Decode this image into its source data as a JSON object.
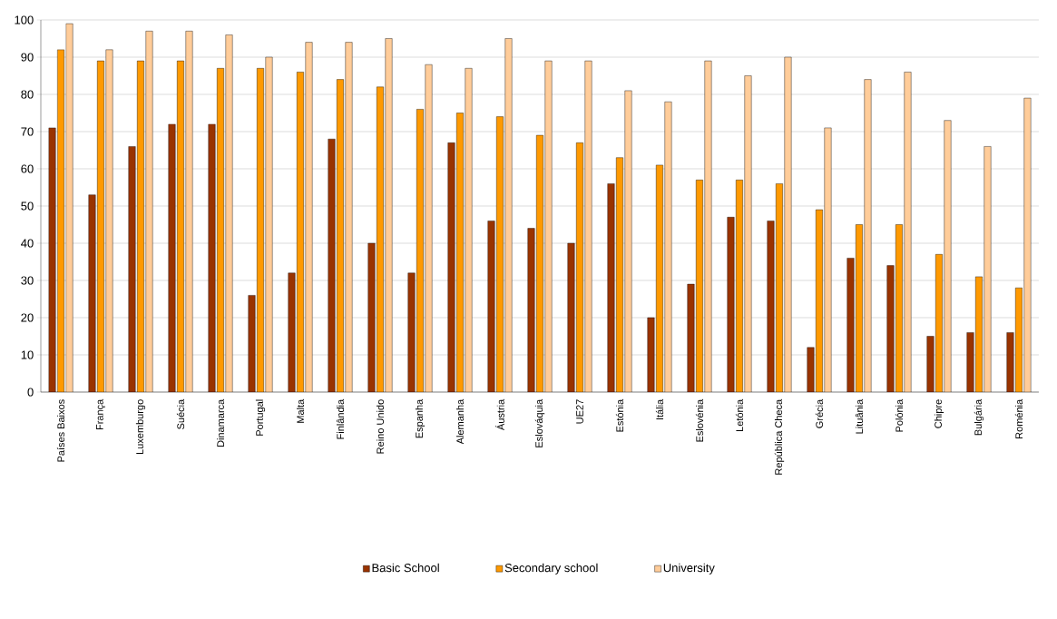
{
  "chart_data": {
    "type": "bar",
    "categories": [
      "Países Baixos",
      "França",
      "Luxemburgo",
      "Suécia",
      "Dinamarca",
      "Portugal",
      "Malta",
      "Finlândia",
      "Reino Unido",
      "Espanha",
      "Alemanha",
      "Áustria",
      "Eslováquia",
      "UE27",
      "Estónia",
      "Itália",
      "Eslovénia",
      "Letónia",
      "República Checa",
      "Grécia",
      "Lituânia",
      "Polónia",
      "Chipre",
      "Bulgária",
      "Roménia"
    ],
    "series": [
      {
        "name": "Basic School",
        "color": "#993300",
        "values": [
          71,
          53,
          66,
          72,
          72,
          26,
          32,
          68,
          40,
          32,
          67,
          46,
          44,
          40,
          56,
          20,
          29,
          47,
          46,
          12,
          36,
          34,
          15,
          16,
          16
        ]
      },
      {
        "name": "Secondary school",
        "color": "#ff9900",
        "values": [
          92,
          89,
          89,
          89,
          87,
          87,
          86,
          84,
          82,
          76,
          75,
          74,
          69,
          67,
          63,
          61,
          57,
          57,
          56,
          49,
          45,
          45,
          37,
          31,
          28
        ]
      },
      {
        "name": "University",
        "color": "#ffcc99",
        "values": [
          99,
          92,
          97,
          97,
          96,
          90,
          94,
          94,
          95,
          88,
          87,
          95,
          89,
          89,
          81,
          78,
          89,
          85,
          90,
          71,
          84,
          86,
          73,
          66,
          79
        ]
      }
    ],
    "ylim": [
      0,
      100
    ],
    "yticks": [
      0,
      10,
      20,
      30,
      40,
      50,
      60,
      70,
      80,
      90,
      100
    ],
    "grid": "y",
    "legend": "bottom"
  }
}
